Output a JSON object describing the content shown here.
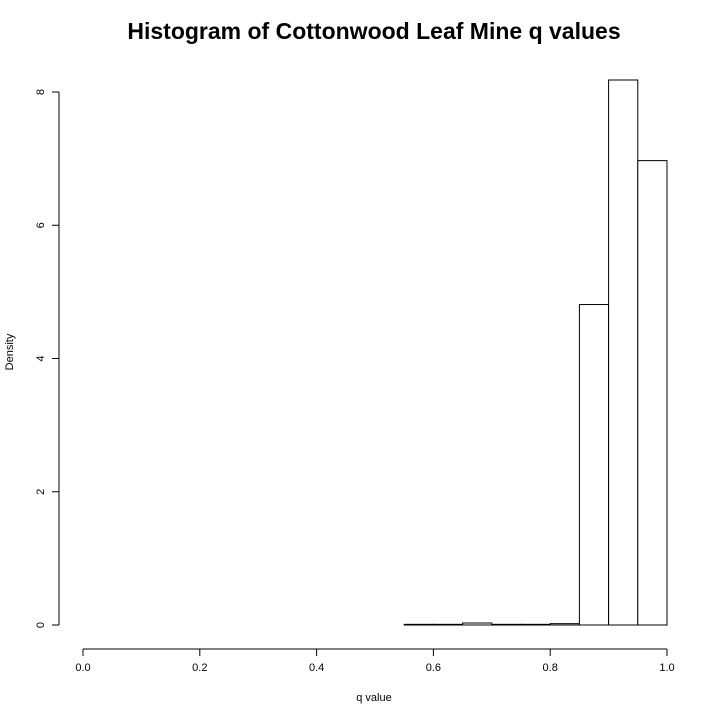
{
  "chart_data": {
    "type": "bar",
    "title": "Histogram of Cottonwood Leaf Mine q values",
    "xlabel": "q value",
    "ylabel": "Density",
    "xlim": [
      0,
      1
    ],
    "ylim": [
      0,
      8
    ],
    "x_ticks": [
      "0.0",
      "0.2",
      "0.4",
      "0.6",
      "0.8",
      "1.0"
    ],
    "y_ticks": [
      "0",
      "2",
      "4",
      "6",
      "8"
    ],
    "bin_width": 0.05,
    "bins": [
      {
        "x0": 0.0,
        "x1": 0.05,
        "density": 0.0
      },
      {
        "x0": 0.05,
        "x1": 0.1,
        "density": 0.0
      },
      {
        "x0": 0.1,
        "x1": 0.15,
        "density": 0.0
      },
      {
        "x0": 0.15,
        "x1": 0.2,
        "density": 0.0
      },
      {
        "x0": 0.2,
        "x1": 0.25,
        "density": 0.0
      },
      {
        "x0": 0.25,
        "x1": 0.3,
        "density": 0.0
      },
      {
        "x0": 0.3,
        "x1": 0.35,
        "density": 0.0
      },
      {
        "x0": 0.35,
        "x1": 0.4,
        "density": 0.0
      },
      {
        "x0": 0.4,
        "x1": 0.45,
        "density": 0.0
      },
      {
        "x0": 0.45,
        "x1": 0.5,
        "density": 0.0
      },
      {
        "x0": 0.5,
        "x1": 0.55,
        "density": 0.0
      },
      {
        "x0": 0.55,
        "x1": 0.6,
        "density": 0.01
      },
      {
        "x0": 0.6,
        "x1": 0.65,
        "density": 0.01
      },
      {
        "x0": 0.65,
        "x1": 0.7,
        "density": 0.03
      },
      {
        "x0": 0.7,
        "x1": 0.75,
        "density": 0.01
      },
      {
        "x0": 0.75,
        "x1": 0.8,
        "density": 0.01
      },
      {
        "x0": 0.8,
        "x1": 0.85,
        "density": 0.02
      },
      {
        "x0": 0.85,
        "x1": 0.9,
        "density": 4.81
      },
      {
        "x0": 0.9,
        "x1": 0.95,
        "density": 8.18
      },
      {
        "x0": 0.95,
        "x1": 1.0,
        "density": 6.97
      }
    ]
  }
}
